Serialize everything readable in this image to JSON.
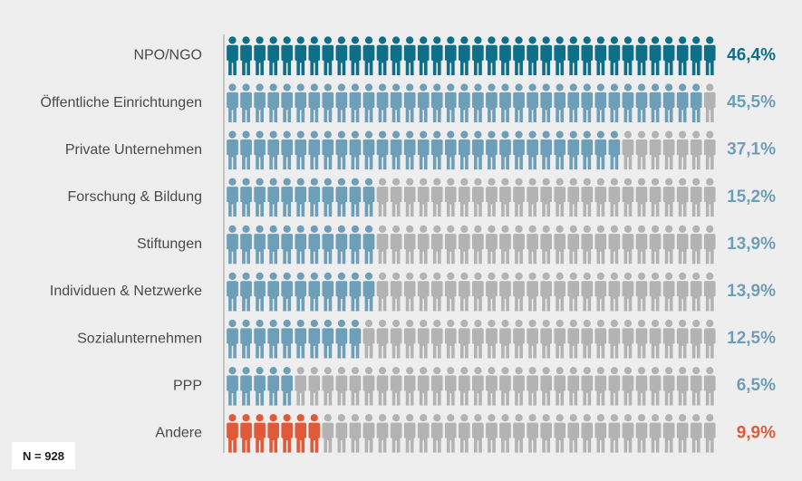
{
  "chart_data": {
    "type": "pictograph",
    "icons_per_row": 36,
    "categories": [
      "NPO/NGO",
      "Öffentliche Einrichtungen",
      "Private Unternehmen",
      "Forschung & Bildung",
      "Stiftungen",
      "Individuen & Netzwerke",
      "Sozialunternehmen",
      "PPP",
      "Andere"
    ],
    "values": [
      46.4,
      45.5,
      37.1,
      15.2,
      13.9,
      13.9,
      12.5,
      6.5,
      9.9
    ],
    "value_labels": [
      "46,4%",
      "45,5%",
      "37,1%",
      "15,2%",
      "13,9%",
      "13,9%",
      "12,5%",
      "6,5%",
      "9,9%"
    ],
    "filled_icons": [
      36,
      35,
      29,
      11,
      11,
      11,
      10,
      5,
      7
    ],
    "colors": [
      "#0e6f88",
      "#6d9fb8",
      "#6d9fb8",
      "#6d9fb8",
      "#6d9fb8",
      "#6d9fb8",
      "#6d9fb8",
      "#6d9fb8",
      "#e05a3a"
    ],
    "label_colors": [
      "#0e6f88",
      "#6d9fb8",
      "#6d9fb8",
      "#6d9fb8",
      "#6d9fb8",
      "#6d9fb8",
      "#6d9fb8",
      "#6d9fb8",
      "#e05a3a"
    ],
    "empty_color": "#b3b3b3",
    "axis_color": "#9e9e9e"
  },
  "footnote": "N = 928"
}
